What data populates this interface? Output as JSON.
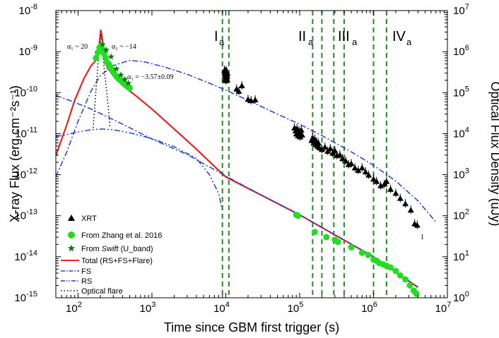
{
  "chart_data": {
    "type": "scatter",
    "xlabel": "Time since GBM first trigger (s)",
    "ylabel": "X-ray Flux (erg cm⁻²s⁻¹)",
    "ylabel_right": "Optical Flux Density (uJy)",
    "x_scale": "log",
    "y_scale": "log",
    "xlim": [
      50,
      10000000
    ],
    "ylim": [
      1e-15,
      1e-08
    ],
    "ylim_right": [
      1,
      10000000
    ],
    "x_ticks": [
      100,
      1000,
      10000,
      100000,
      1000000,
      10000000
    ],
    "x_tick_labels": [
      "10",
      "10",
      "10",
      "10",
      "10",
      "10"
    ],
    "x_tick_exps": [
      "2",
      "3",
      "4",
      "5",
      "6",
      "7"
    ],
    "y_ticks": [
      1e-15,
      1e-14,
      1e-13,
      1e-12,
      1e-11,
      1e-10,
      1e-09,
      1e-08
    ],
    "y_tick_labels": [
      "10",
      "10",
      "10",
      "10",
      "10",
      "10",
      "10",
      "10"
    ],
    "y_tick_exps": [
      "-15",
      "-14",
      "-13",
      "-12",
      "-11",
      "-10",
      "-9",
      "-8"
    ],
    "y_right_ticks": [
      1,
      10,
      100,
      1000,
      10000,
      100000,
      1000000,
      10000000
    ],
    "y_right_tick_labels": [
      "10",
      "10",
      "10",
      "10",
      "10",
      "10",
      "10",
      "10"
    ],
    "y_right_tick_exps": [
      "0",
      "1",
      "2",
      "3",
      "4",
      "5",
      "6",
      "7"
    ],
    "annotations": {
      "alpha1": "α₁ ~ 20",
      "alpha2": "α₂ ~ −14",
      "alpha3": "α₃ = −3.57±0.09",
      "phase_I": "I",
      "phase_II": "II",
      "phase_III": "III",
      "phase_IV": "IV",
      "phase_sub": "a",
      "tail_label": "1"
    },
    "phase_boundaries": [
      9000,
      11000,
      150000,
      200000,
      290000,
      400000,
      1000000,
      1500000
    ],
    "legend": {
      "placement": "bottom-left",
      "entries": [
        {
          "label": "XRT",
          "marker": "triangle"
        },
        {
          "label": "From Zhang et al. 2016",
          "marker": "circle"
        },
        {
          "label_prefix": "From ",
          "label_italic": "Swift",
          "label_suffix": " (U_band)",
          "marker": "star"
        },
        {
          "label": "Total (RS+FS+Flare)",
          "marker": "solid-line"
        },
        {
          "label": "FS",
          "marker": "dash-dot-line"
        },
        {
          "label": "RS",
          "marker": "dash-dot-dot-line"
        },
        {
          "label": "Optical flare",
          "marker": "dotted-line"
        }
      ]
    },
    "series": [
      {
        "name": "XRT",
        "color": "#000000",
        "marker": "triangle",
        "points": [
          [
            9600,
            3.6e-10
          ],
          [
            9700,
            3e-10
          ],
          [
            9750,
            2.6e-10
          ],
          [
            9800,
            2.2e-10
          ],
          [
            9850,
            3.3e-10
          ],
          [
            9900,
            2.8e-10
          ],
          [
            9950,
            2e-10
          ],
          [
            10000,
            3.1e-10
          ],
          [
            10050,
            2.4e-10
          ],
          [
            10100,
            2.7e-10
          ],
          [
            10150,
            3.5e-10
          ],
          [
            10200,
            2.2e-10
          ],
          [
            10250,
            2.9e-10
          ],
          [
            10300,
            2.5e-10
          ],
          [
            10350,
            3.2e-10
          ],
          [
            10400,
            2.6e-10
          ],
          [
            10450,
            2.1e-10
          ],
          [
            10500,
            3e-10
          ],
          [
            14000,
            1.25e-10
          ],
          [
            15000,
            1.1e-10
          ],
          [
            16500,
            1.5e-10
          ],
          [
            20000,
            7e-11
          ],
          [
            22000,
            6.5e-11
          ],
          [
            25000,
            6.8e-11
          ],
          [
            85000,
            1.4e-11
          ],
          [
            88000,
            1.2e-11
          ],
          [
            90000,
            1e-11
          ],
          [
            92000,
            1.35e-11
          ],
          [
            95000,
            9e-12
          ],
          [
            98000,
            1.2e-11
          ],
          [
            100000,
            1.05e-11
          ],
          [
            102000,
            8.5e-12
          ],
          [
            105000,
            1.25e-11
          ],
          [
            108000,
            9.5e-12
          ],
          [
            145000,
            7e-12
          ],
          [
            150000,
            8e-12
          ],
          [
            155000,
            6e-12
          ],
          [
            160000,
            7.5e-12
          ],
          [
            165000,
            5.5e-12
          ],
          [
            170000,
            6.5e-12
          ],
          [
            175000,
            5e-12
          ],
          [
            180000,
            6e-12
          ],
          [
            185000,
            4.6e-12
          ],
          [
            200000,
            4.2e-12
          ],
          [
            220000,
            4.8e-12
          ],
          [
            240000,
            3.8e-12
          ],
          [
            260000,
            4.4e-12
          ],
          [
            280000,
            3.4e-12
          ],
          [
            300000,
            3.9e-12
          ],
          [
            320000,
            3e-12
          ],
          [
            350000,
            3.1e-12
          ],
          [
            380000,
            2.5e-12
          ],
          [
            420000,
            2.2e-12
          ],
          [
            460000,
            1.8e-12
          ],
          [
            500000,
            1.9e-12
          ],
          [
            560000,
            1.5e-12
          ],
          [
            620000,
            1.3e-12
          ],
          [
            700000,
            1.5e-12
          ],
          [
            780000,
            1.2e-12
          ],
          [
            860000,
            1e-12
          ],
          [
            1000000,
            8e-13
          ],
          [
            1100000,
            7e-13
          ],
          [
            1250000,
            5.5e-13
          ],
          [
            1400000,
            6e-13
          ],
          [
            1500000,
            7e-13
          ],
          [
            1700000,
            4.5e-13
          ],
          [
            2000000,
            3.6e-13
          ],
          [
            2300000,
            2.7e-13
          ],
          [
            2700000,
            2e-13
          ],
          [
            3200000,
            1.4e-13
          ],
          [
            3600000,
            6.5e-14
          ],
          [
            3900000,
            6e-14
          ]
        ]
      },
      {
        "name": "From Zhang et al. 2016",
        "color": "#22DD22",
        "marker": "circle",
        "points": [
          [
            175,
            7e-10
          ],
          [
            185,
            9.5e-10
          ],
          [
            195,
            1.25e-09
          ],
          [
            205,
            1.4e-09
          ],
          [
            215,
            1.1e-09
          ],
          [
            225,
            9e-10
          ],
          [
            235,
            7e-10
          ],
          [
            245,
            5.5e-10
          ],
          [
            260,
            5e-10
          ],
          [
            275,
            4.2e-10
          ],
          [
            290,
            3.5e-10
          ],
          [
            310,
            2.9e-10
          ],
          [
            330,
            2.5e-10
          ],
          [
            350,
            2.2e-10
          ],
          [
            375,
            2e-10
          ],
          [
            400,
            1.8e-10
          ],
          [
            430,
            1.6e-10
          ],
          [
            460,
            1.45e-10
          ],
          [
            500,
            1.3e-10
          ],
          [
            90000,
            1.05e-13
          ],
          [
            95000,
            1e-13
          ],
          [
            160000,
            4e-14
          ],
          [
            230000,
            3e-14
          ],
          [
            300000,
            2.6e-14
          ],
          [
            330000,
            2.3e-14
          ],
          [
            500000,
            1.7e-14
          ],
          [
            700000,
            1.25e-14
          ],
          [
            850000,
            1.1e-14
          ],
          [
            1000000,
            8.5e-15
          ],
          [
            1100000,
            8e-15
          ],
          [
            1200000,
            7e-15
          ],
          [
            1350000,
            6.5e-15
          ],
          [
            1500000,
            6e-15
          ],
          [
            1700000,
            5.5e-15
          ],
          [
            2000000,
            4.5e-15
          ],
          [
            2300000,
            3.5e-15
          ],
          [
            2700000,
            2.8e-15
          ],
          [
            3100000,
            2e-15
          ],
          [
            3500000,
            1.5e-15
          ],
          [
            3800000,
            1.25e-15
          ]
        ]
      },
      {
        "name": "From Swift (U_band)",
        "color": "#117711",
        "marker": "star",
        "points": [
          [
            215,
            1.5e-09
          ],
          [
            240,
            1.1e-09
          ],
          [
            280,
            7.5e-10
          ],
          [
            330,
            3.8e-10
          ],
          [
            380,
            2.7e-10
          ],
          [
            430,
            2.1e-10
          ],
          [
            480,
            1.7e-10
          ]
        ]
      },
      {
        "name": "Total (RS+FS+Flare)",
        "color": "#EE2020",
        "style": "solid",
        "points": [
          [
            50,
            2.9e-12
          ],
          [
            70,
            1.6e-11
          ],
          [
            90,
            6.5e-11
          ],
          [
            120,
            2.2e-10
          ],
          [
            150,
            4.5e-10
          ],
          [
            170,
            5.8e-10
          ],
          [
            185,
            7.8e-10
          ],
          [
            198,
            2.2e-09
          ],
          [
            203,
            3.4e-09
          ],
          [
            210,
            2.4e-09
          ],
          [
            222,
            1.2e-09
          ],
          [
            235,
            6e-10
          ],
          [
            250,
            4e-10
          ],
          [
            300,
            2.6e-10
          ],
          [
            400,
            1.5e-10
          ],
          [
            600,
            8.5e-11
          ],
          [
            1000,
            4e-11
          ],
          [
            2000,
            1.3e-11
          ],
          [
            4000,
            4.2e-12
          ],
          [
            7000,
            1.6e-12
          ],
          [
            10000,
            8.8e-13
          ],
          [
            30000,
            3.2e-13
          ],
          [
            100000,
            1.05e-13
          ],
          [
            300000,
            3.4e-14
          ],
          [
            1000000,
            1e-14
          ],
          [
            4000000,
            1.8e-15
          ]
        ]
      },
      {
        "name": "FS",
        "color": "#2040DD",
        "style": "dash-dot",
        "points": [
          [
            50,
            9e-13
          ],
          [
            70,
            3.5e-12
          ],
          [
            100,
            2e-11
          ],
          [
            150,
            1.1e-10
          ],
          [
            200,
            2.6e-10
          ],
          [
            300,
            4.6e-10
          ],
          [
            500,
            6.1e-10
          ],
          [
            800,
            5.6e-10
          ],
          [
            1500,
            4.2e-10
          ],
          [
            3000,
            2.8e-10
          ],
          [
            6000,
            1.7e-10
          ],
          [
            10000,
            1.15e-10
          ],
          [
            20000,
            6.5e-11
          ],
          [
            50000,
            3e-11
          ],
          [
            100000,
            1.7e-11
          ],
          [
            200000,
            9e-12
          ],
          [
            500000,
            3.6e-12
          ],
          [
            1000000,
            1.7e-12
          ],
          [
            2000000,
            7e-13
          ],
          [
            4000000,
            2.3e-13
          ],
          [
            7000000,
            7e-14
          ]
        ]
      },
      {
        "name": "FS (low)",
        "color": "#2040DD",
        "style": "dash-dot",
        "points": [
          [
            50,
            8.5e-11
          ],
          [
            80,
            6.3e-11
          ],
          [
            150,
            4e-11
          ],
          [
            200,
            3.1e-11
          ],
          [
            300,
            2.2e-11
          ],
          [
            500,
            1.4e-11
          ],
          [
            1000,
            7.4e-12
          ],
          [
            3000,
            3.1e-12
          ],
          [
            10000,
            9.3e-13
          ],
          [
            30000,
            3.2e-13
          ],
          [
            100000,
            1.05e-13
          ],
          [
            300000,
            3.4e-14
          ],
          [
            1000000,
            1e-14
          ],
          [
            4000000,
            1.8e-15
          ]
        ]
      },
      {
        "name": "RS",
        "color": "#2040DD",
        "style": "dash-dot-dot",
        "points": [
          [
            50,
            8.5e-12
          ],
          [
            70,
            9.5e-12
          ],
          [
            100,
            1.1e-11
          ],
          [
            150,
            1.25e-11
          ],
          [
            200,
            1.3e-11
          ],
          [
            300,
            1.25e-11
          ],
          [
            500,
            1.05e-11
          ],
          [
            1000,
            7.6e-12
          ],
          [
            2000,
            4.8e-12
          ],
          [
            4000,
            2.5e-12
          ],
          [
            6000,
            1e-12
          ],
          [
            8000,
            3.5e-13
          ],
          [
            9000,
            1.3e-13
          ]
        ]
      },
      {
        "name": "Optical flare",
        "color": "#000000",
        "style": "dotted",
        "points": [
          [
            160,
            1.4e-11
          ],
          [
            175,
            1.2e-10
          ],
          [
            190,
            8e-10
          ],
          [
            200,
            1.5e-09
          ],
          [
            205,
            2.6e-09
          ],
          [
            210,
            2e-09
          ],
          [
            220,
            6e-10
          ],
          [
            240,
            1.4e-10
          ],
          [
            260,
            3.5e-11
          ],
          [
            270,
            1.5e-11
          ]
        ]
      }
    ]
  }
}
